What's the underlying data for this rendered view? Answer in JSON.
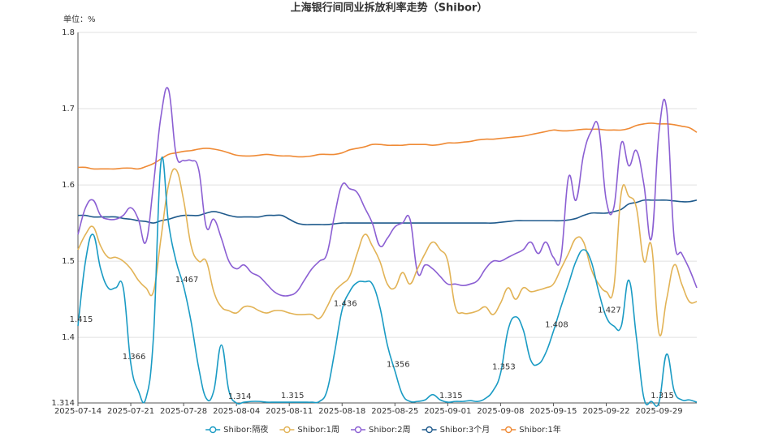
{
  "chart_data": {
    "type": "line",
    "title": "上海银行间同业拆放利率走势（Shibor）",
    "y_unit": "单位：%",
    "categories": [
      "2025-07-14",
      null,
      null,
      null,
      null,
      null,
      null,
      "2025-07-21",
      null,
      null,
      null,
      null,
      null,
      null,
      "2025-07-28",
      null,
      null,
      null,
      null,
      null,
      null,
      "2025-08-04",
      null,
      null,
      null,
      null,
      null,
      null,
      "2025-08-11",
      null,
      null,
      null,
      null,
      null,
      null,
      "2025-08-18",
      null,
      null,
      null,
      null,
      null,
      null,
      "2025-08-25",
      null,
      null,
      null,
      null,
      null,
      null,
      "2025-09-01",
      null,
      null,
      null,
      null,
      null,
      null,
      "2025-09-08",
      null,
      null,
      null,
      null,
      null,
      null,
      "2025-09-15",
      null,
      null,
      null,
      null,
      null,
      null,
      "2025-09-22",
      null,
      null,
      null,
      null,
      null,
      null,
      "2025-09-29",
      null,
      null,
      null,
      null,
      null
    ],
    "ylim": [
      1.314,
      1.8
    ],
    "yticks": [
      1.314,
      1.4,
      1.5,
      1.6,
      1.7,
      1.8
    ],
    "grid": true,
    "legend": "bottom",
    "series": [
      {
        "name": "Shibor:隔夜",
        "color": "#1a9bc4",
        "data_labels": true,
        "values": [
          1.415,
          1.5,
          1.535,
          1.49,
          1.465,
          1.465,
          1.465,
          1.366,
          1.33,
          1.32,
          1.4,
          1.63,
          1.55,
          1.5,
          1.467,
          1.42,
          1.36,
          1.32,
          1.33,
          1.39,
          1.33,
          1.314,
          1.315,
          1.316,
          1.316,
          1.315,
          1.315,
          1.315,
          1.315,
          1.315,
          1.315,
          1.315,
          1.316,
          1.33,
          1.38,
          1.436,
          1.46,
          1.472,
          1.473,
          1.47,
          1.44,
          1.39,
          1.356,
          1.325,
          1.316,
          1.316,
          1.318,
          1.325,
          1.318,
          1.315,
          1.316,
          1.316,
          1.317,
          1.316,
          1.32,
          1.33,
          1.353,
          1.41,
          1.427,
          1.41,
          1.37,
          1.365,
          1.38,
          1.408,
          1.44,
          1.47,
          1.5,
          1.515,
          1.5,
          1.46,
          1.427,
          1.415,
          1.415,
          1.475,
          1.4,
          1.32,
          1.316,
          1.315,
          1.378,
          1.33,
          1.318,
          1.318,
          1.315
        ]
      },
      {
        "name": "Shibor:1周",
        "color": "#e2b356",
        "values": [
          1.515,
          1.535,
          1.545,
          1.52,
          1.505,
          1.505,
          1.5,
          1.49,
          1.475,
          1.465,
          1.46,
          1.53,
          1.6,
          1.62,
          1.58,
          1.52,
          1.5,
          1.5,
          1.46,
          1.44,
          1.435,
          1.432,
          1.44,
          1.44,
          1.435,
          1.432,
          1.435,
          1.435,
          1.432,
          1.43,
          1.43,
          1.43,
          1.425,
          1.44,
          1.46,
          1.47,
          1.48,
          1.51,
          1.535,
          1.52,
          1.5,
          1.47,
          1.465,
          1.485,
          1.47,
          1.49,
          1.51,
          1.525,
          1.515,
          1.5,
          1.44,
          1.432,
          1.432,
          1.435,
          1.44,
          1.43,
          1.445,
          1.465,
          1.45,
          1.465,
          1.46,
          1.462,
          1.465,
          1.47,
          1.49,
          1.51,
          1.53,
          1.525,
          1.49,
          1.47,
          1.46,
          1.465,
          1.59,
          1.585,
          1.57,
          1.5,
          1.52,
          1.405,
          1.45,
          1.495,
          1.47,
          1.447,
          1.447
        ]
      },
      {
        "name": "Shibor:2周",
        "color": "#8b5fd3",
        "values": [
          1.535,
          1.57,
          1.58,
          1.56,
          1.555,
          1.555,
          1.56,
          1.57,
          1.555,
          1.525,
          1.6,
          1.69,
          1.725,
          1.64,
          1.632,
          1.632,
          1.62,
          1.545,
          1.555,
          1.53,
          1.5,
          1.49,
          1.495,
          1.485,
          1.48,
          1.47,
          1.46,
          1.455,
          1.455,
          1.46,
          1.475,
          1.49,
          1.5,
          1.51,
          1.56,
          1.6,
          1.595,
          1.59,
          1.57,
          1.55,
          1.52,
          1.53,
          1.545,
          1.55,
          1.555,
          1.485,
          1.495,
          1.49,
          1.48,
          1.47,
          1.47,
          1.468,
          1.47,
          1.475,
          1.49,
          1.5,
          1.5,
          1.505,
          1.51,
          1.515,
          1.525,
          1.51,
          1.525,
          1.505,
          1.505,
          1.61,
          1.58,
          1.64,
          1.67,
          1.675,
          1.58,
          1.57,
          1.655,
          1.625,
          1.645,
          1.6,
          1.53,
          1.67,
          1.7,
          1.53,
          1.51,
          1.49,
          1.465
        ]
      },
      {
        "name": "Shibor:3个月",
        "color": "#1f5a8c",
        "values": [
          1.56,
          1.56,
          1.558,
          1.558,
          1.558,
          1.558,
          1.556,
          1.555,
          1.553,
          1.552,
          1.55,
          1.553,
          1.555,
          1.558,
          1.56,
          1.56,
          1.56,
          1.563,
          1.565,
          1.563,
          1.56,
          1.558,
          1.558,
          1.558,
          1.558,
          1.56,
          1.56,
          1.56,
          1.555,
          1.55,
          1.548,
          1.548,
          1.548,
          1.548,
          1.549,
          1.55,
          1.55,
          1.55,
          1.55,
          1.55,
          1.55,
          1.55,
          1.55,
          1.55,
          1.55,
          1.55,
          1.55,
          1.55,
          1.55,
          1.55,
          1.55,
          1.55,
          1.55,
          1.55,
          1.55,
          1.55,
          1.551,
          1.552,
          1.553,
          1.553,
          1.553,
          1.553,
          1.553,
          1.553,
          1.553,
          1.554,
          1.556,
          1.56,
          1.563,
          1.563,
          1.563,
          1.565,
          1.568,
          1.575,
          1.577,
          1.58,
          1.58,
          1.58,
          1.58,
          1.579,
          1.578,
          1.578,
          1.58
        ]
      },
      {
        "name": "Shibor:1年",
        "color": "#ef8a35",
        "values": [
          1.623,
          1.623,
          1.621,
          1.621,
          1.621,
          1.621,
          1.622,
          1.622,
          1.621,
          1.624,
          1.628,
          1.634,
          1.64,
          1.642,
          1.644,
          1.645,
          1.647,
          1.648,
          1.647,
          1.645,
          1.642,
          1.639,
          1.638,
          1.638,
          1.639,
          1.64,
          1.639,
          1.638,
          1.638,
          1.637,
          1.637,
          1.638,
          1.64,
          1.64,
          1.64,
          1.642,
          1.646,
          1.648,
          1.65,
          1.653,
          1.653,
          1.652,
          1.652,
          1.652,
          1.653,
          1.653,
          1.653,
          1.652,
          1.653,
          1.655,
          1.655,
          1.656,
          1.657,
          1.659,
          1.66,
          1.66,
          1.661,
          1.662,
          1.663,
          1.664,
          1.666,
          1.668,
          1.67,
          1.672,
          1.671,
          1.671,
          1.672,
          1.673,
          1.673,
          1.673,
          1.672,
          1.672,
          1.672,
          1.674,
          1.678,
          1.68,
          1.681,
          1.68,
          1.68,
          1.679,
          1.677,
          1.675,
          1.669
        ]
      }
    ]
  }
}
